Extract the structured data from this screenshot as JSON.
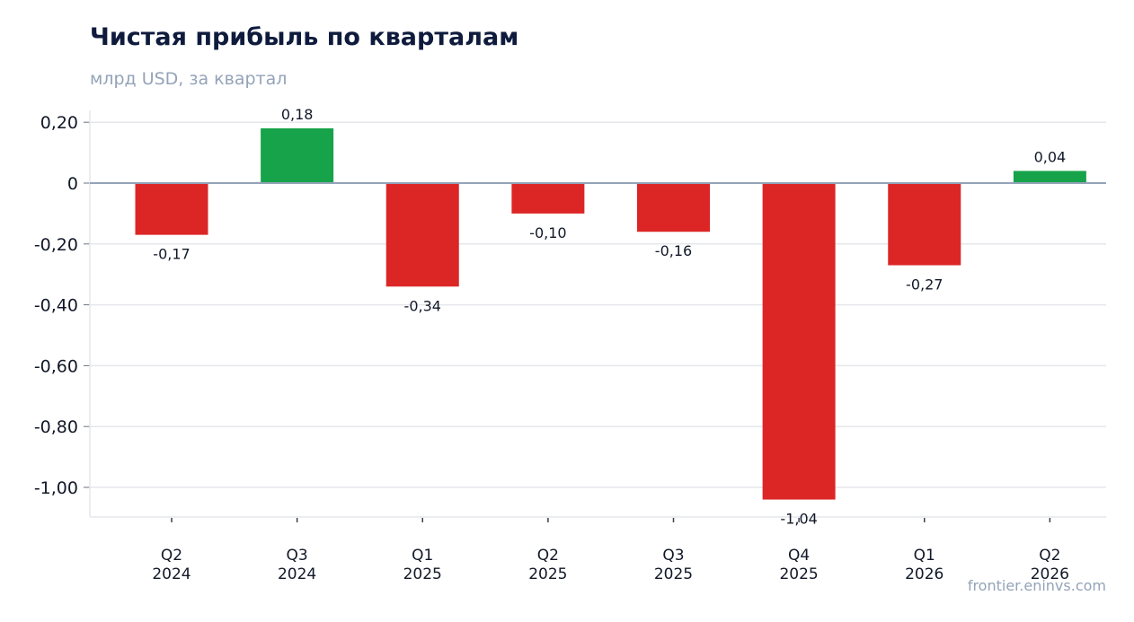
{
  "chart_data": {
    "type": "bar",
    "title": "Чистая прибыль по кварталам",
    "subtitle": "млрд USD, за квартал",
    "categories": [
      [
        "Q2",
        "2024"
      ],
      [
        "Q3",
        "2024"
      ],
      [
        "Q1",
        "2025"
      ],
      [
        "Q2",
        "2025"
      ],
      [
        "Q3",
        "2025"
      ],
      [
        "Q4",
        "2025"
      ],
      [
        "Q1",
        "2026"
      ],
      [
        "Q2",
        "2026"
      ]
    ],
    "values": [
      -0.17,
      0.18,
      -0.34,
      -0.1,
      -0.16,
      -1.04,
      -0.27,
      0.04
    ],
    "value_labels": [
      "-0,17",
      "0,18",
      "-0,34",
      "-0,10",
      "-0,16",
      "-1,04",
      "-0,27",
      "0,04"
    ],
    "ylim": [
      -1.1,
      0.24
    ],
    "yticks": [
      0.2,
      0,
      -0.2,
      -0.4,
      -0.6,
      -0.8,
      -1.0
    ],
    "ytick_labels": [
      "0,20",
      "0",
      "-0,20",
      "-0,40",
      "-0,60",
      "-0,80",
      "-1,00"
    ],
    "grid": "horizontal",
    "colors": {
      "positive": "#16a34a",
      "negative": "#dc2626",
      "grid": "#e5e7eb",
      "zero_line": "#94a3b8",
      "axis": "#e5e7eb",
      "label": "#111827"
    }
  },
  "watermark": "frontier.eninvs.com"
}
